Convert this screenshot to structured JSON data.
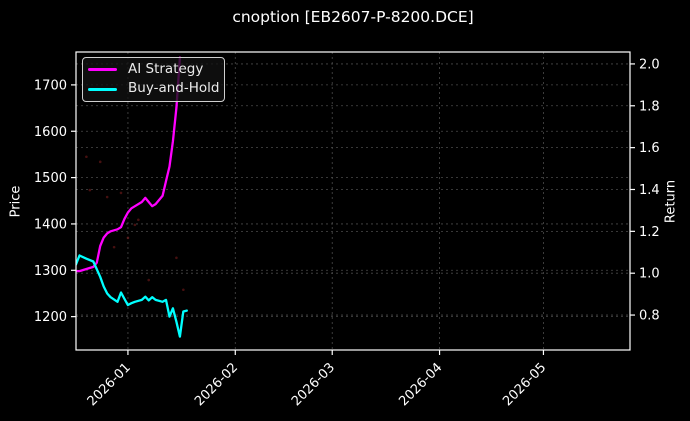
{
  "window": {
    "background": "#000000",
    "foreground": "#ffffff"
  },
  "chart_data": {
    "type": "line",
    "title": "cnoption [EB2607-P-8200.DCE]",
    "ylabel_left": "Price",
    "ylabel_right": "Return",
    "legend_position": "upper-left",
    "grid": {
      "show": true,
      "color": "#4f4f4f",
      "dash": "2,3"
    },
    "frame_color": "#ffffff",
    "x_axis": {
      "type": "time",
      "min": "2025-12-17",
      "max": "2026-05-26",
      "ticks": [
        {
          "value": "2026-01-01",
          "label": "2026-01"
        },
        {
          "value": "2026-02-01",
          "label": "2026-02"
        },
        {
          "value": "2026-03-01",
          "label": "2026-03"
        },
        {
          "value": "2026-04-01",
          "label": "2026-04"
        },
        {
          "value": "2026-05-01",
          "label": "2026-05"
        }
      ]
    },
    "y_axis_left": {
      "label": "Price",
      "min": 1128,
      "max": 1771,
      "ticks": [
        1200,
        1300,
        1400,
        1500,
        1600,
        1700
      ]
    },
    "y_axis_right": {
      "label": "Return",
      "min": 0.633,
      "max": 2.057,
      "ticks": [
        0.8,
        1.0,
        1.2,
        1.4,
        1.6,
        1.8,
        2.0
      ]
    },
    "series": [
      {
        "name": "AI Strategy",
        "color": "#ff00ff",
        "axis": "right",
        "points": [
          [
            "2025-12-17",
            1.01
          ],
          [
            "2025-12-18",
            1.01
          ],
          [
            "2025-12-20",
            1.02
          ],
          [
            "2025-12-22",
            1.03
          ],
          [
            "2025-12-23",
            1.05
          ],
          [
            "2025-12-24",
            1.13
          ],
          [
            "2025-12-25",
            1.17
          ],
          [
            "2025-12-26",
            1.19
          ],
          [
            "2025-12-27",
            1.2
          ],
          [
            "2025-12-29",
            1.21
          ],
          [
            "2025-12-30",
            1.22
          ],
          [
            "2025-12-31",
            1.26
          ],
          [
            "2026-01-01",
            1.29
          ],
          [
            "2026-01-02",
            1.31
          ],
          [
            "2026-01-03",
            1.32
          ],
          [
            "2026-01-05",
            1.34
          ],
          [
            "2026-01-06",
            1.36
          ],
          [
            "2026-01-07",
            1.34
          ],
          [
            "2026-01-08",
            1.32
          ],
          [
            "2026-01-09",
            1.33
          ],
          [
            "2026-01-11",
            1.37
          ],
          [
            "2026-01-12",
            1.44
          ],
          [
            "2026-01-13",
            1.51
          ],
          [
            "2026-01-14",
            1.63
          ],
          [
            "2026-01-15",
            1.79
          ],
          [
            "2026-01-16",
            2.03
          ]
        ]
      },
      {
        "name": "Buy-and-Hold",
        "color": "#00ffff",
        "axis": "left",
        "points": [
          [
            "2025-12-17",
            1313
          ],
          [
            "2025-12-18",
            1332
          ],
          [
            "2025-12-20",
            1325
          ],
          [
            "2025-12-22",
            1319
          ],
          [
            "2025-12-24",
            1286
          ],
          [
            "2025-12-25",
            1265
          ],
          [
            "2025-12-26",
            1250
          ],
          [
            "2025-12-27",
            1242
          ],
          [
            "2025-12-29",
            1232
          ],
          [
            "2025-12-30",
            1252
          ],
          [
            "2025-12-31",
            1238
          ],
          [
            "2026-01-01",
            1225
          ],
          [
            "2026-01-02",
            1229
          ],
          [
            "2026-01-03",
            1232
          ],
          [
            "2026-01-05",
            1236
          ],
          [
            "2026-01-06",
            1243
          ],
          [
            "2026-01-07",
            1235
          ],
          [
            "2026-01-08",
            1242
          ],
          [
            "2026-01-09",
            1236
          ],
          [
            "2026-01-11",
            1232
          ],
          [
            "2026-01-12",
            1236
          ],
          [
            "2026-01-13",
            1200
          ],
          [
            "2026-01-14",
            1218
          ],
          [
            "2026-01-15",
            1189
          ],
          [
            "2026-01-16",
            1157
          ],
          [
            "2026-01-17",
            1211
          ],
          [
            "2026-01-18",
            1213
          ]
        ]
      }
    ],
    "noise_markers": {
      "color": "#8b1f1f",
      "opacity": 0.5,
      "axis": "left",
      "points": [
        [
          "2025-12-20",
          1545
        ],
        [
          "2025-12-21",
          1473
        ],
        [
          "2025-12-24",
          1534
        ],
        [
          "2025-12-26",
          1458
        ],
        [
          "2025-12-28",
          1350
        ],
        [
          "2025-12-30",
          1467
        ],
        [
          "2026-01-01",
          1370
        ],
        [
          "2026-01-03",
          1398
        ],
        [
          "2026-01-04",
          1409
        ],
        [
          "2026-01-07",
          1279
        ],
        [
          "2026-01-15",
          1327
        ],
        [
          "2026-01-17",
          1258
        ]
      ]
    }
  }
}
